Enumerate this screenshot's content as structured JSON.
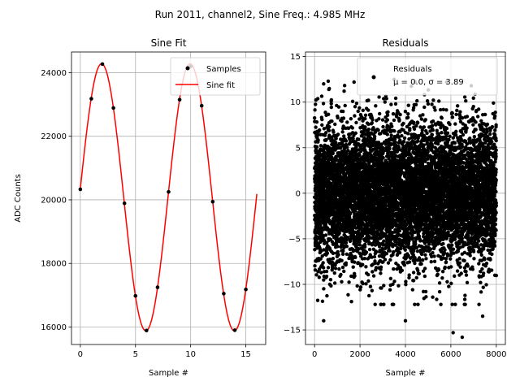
{
  "figure": {
    "suptitle": "Run 2011, channel2, Sine Freq.: 4.985 MHz"
  },
  "colors": {
    "fit": "#ff0000",
    "points": "#000000",
    "grid": "#b0b0b0"
  },
  "chart_data": [
    {
      "type": "scatter+line",
      "title": "Sine Fit",
      "xlabel": "Sample #",
      "ylabel": "ADC Counts",
      "xlim": [
        -0.8,
        16.8
      ],
      "ylim": [
        15450,
        24650
      ],
      "xticks": [
        0,
        5,
        10,
        15
      ],
      "yticks": [
        16000,
        18000,
        20000,
        22000,
        24000
      ],
      "grid": true,
      "legend": {
        "placement": "top-right",
        "entries": [
          "Samples",
          "Sine fit"
        ]
      },
      "series": [
        {
          "name": "Samples",
          "kind": "scatter",
          "x": [
            0,
            1,
            2,
            3,
            4,
            5,
            6,
            7,
            8,
            9,
            10,
            11,
            12,
            13,
            14,
            15
          ],
          "y": [
            20330,
            23180,
            24270,
            22890,
            19890,
            16980,
            15890,
            17250,
            20250,
            23150,
            24200,
            22960,
            19940,
            17050,
            15900,
            17180
          ]
        },
        {
          "name": "Sine fit",
          "kind": "line",
          "offset": 20080,
          "amplitude": 4200,
          "period": 8.024,
          "phase_deg": 3.6,
          "x_range": [
            0,
            16
          ]
        }
      ]
    },
    {
      "type": "scatter",
      "title": "Residuals",
      "xlabel": "Sample #",
      "ylabel": "",
      "xlim": [
        -400,
        8400
      ],
      "ylim": [
        -16.6,
        15.5
      ],
      "xticks": [
        0,
        2000,
        4000,
        6000,
        8000
      ],
      "yticks": [
        -15,
        -10,
        -5,
        0,
        5,
        10,
        15
      ],
      "grid": true,
      "legend": {
        "placement": "top-right",
        "entries": [
          "Residuals",
          "μ = 0.0, σ = 3.89"
        ]
      },
      "series": [
        {
          "name": "Residuals",
          "n_points": 8000,
          "mean": 0.0,
          "std": 3.89,
          "x_range": [
            0,
            8000
          ],
          "outliers": [
            {
              "x": 400,
              "y": -14
            },
            {
              "x": 4000,
              "y": -14
            },
            {
              "x": 6100,
              "y": -15.3
            },
            {
              "x": 6500,
              "y": -15.8
            },
            {
              "x": 7400,
              "y": -13.5
            },
            {
              "x": 600,
              "y": 12.3
            },
            {
              "x": 3500,
              "y": 12.5
            },
            {
              "x": 400,
              "y": 12
            },
            {
              "x": 1300,
              "y": 11.2
            }
          ]
        }
      ]
    }
  ]
}
